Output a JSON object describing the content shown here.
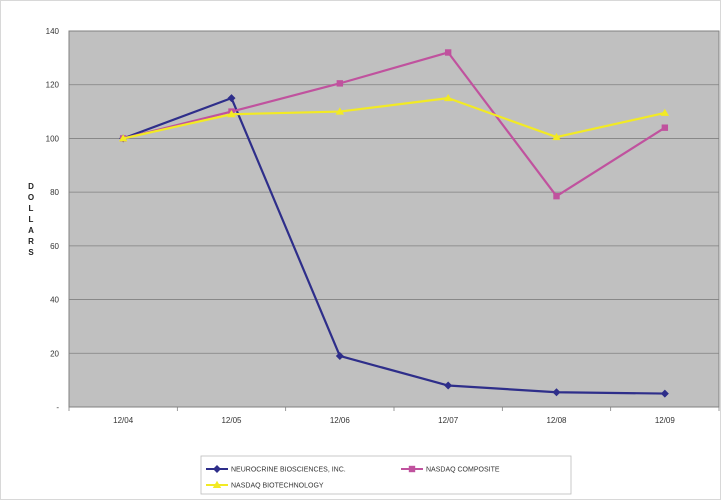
{
  "chart_data": {
    "type": "line",
    "categories": [
      "12/04",
      "12/05",
      "12/06",
      "12/07",
      "12/08",
      "12/09"
    ],
    "series": [
      {
        "name": "NEUROCRINE BIOSCIENCES, INC.",
        "color": "#2e2e8a",
        "marker": "diamond",
        "values": [
          100,
          115,
          19,
          8,
          5.5,
          5
        ]
      },
      {
        "name": "NASDAQ COMPOSITE",
        "color": "#c0529e",
        "marker": "square",
        "values": [
          100,
          110,
          120.5,
          132,
          78.5,
          104
        ]
      },
      {
        "name": "NASDAQ BIOTECHNOLOGY",
        "color": "#f2ea24",
        "marker": "triangle",
        "values": [
          100,
          109,
          110,
          115,
          100.5,
          109.5
        ]
      }
    ],
    "ylabel": "DOLLARS",
    "ylim": [
      0,
      140
    ],
    "yticks": [
      {
        "value": 0,
        "label": "-"
      },
      {
        "value": 20,
        "label": "20"
      },
      {
        "value": 40,
        "label": "40"
      },
      {
        "value": 60,
        "label": "60"
      },
      {
        "value": 80,
        "label": "80"
      },
      {
        "value": 100,
        "label": "100"
      },
      {
        "value": 120,
        "label": "120"
      },
      {
        "value": 140,
        "label": "140"
      }
    ],
    "grid": true,
    "plot_background": "#c0c0c0",
    "legend_position": "bottom"
  }
}
